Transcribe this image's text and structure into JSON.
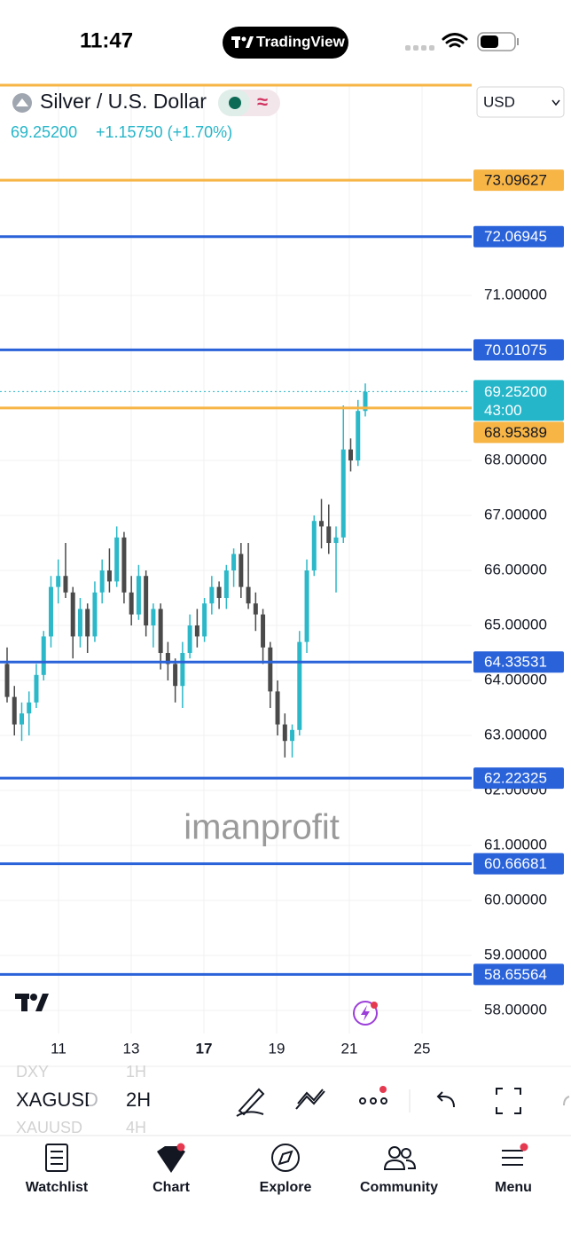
{
  "status_bar": {
    "time": "11:47",
    "app": "TradingView"
  },
  "header": {
    "symbol": "Silver / U.S. Dollar",
    "price": "69.25200",
    "change": "+1.15750 (+1.70%)",
    "currency": "USD"
  },
  "chart": {
    "ylim": [
      57.58,
      74.84
    ],
    "grid": true,
    "price_ticks": [
      {
        "value": 71,
        "label": "71.00000"
      },
      {
        "value": 68,
        "label": "68.00000"
      },
      {
        "value": 67,
        "label": "67.00000"
      },
      {
        "value": 66,
        "label": "66.00000"
      },
      {
        "value": 65,
        "label": "65.00000"
      },
      {
        "value": 64,
        "label": "64.00000"
      },
      {
        "value": 63,
        "label": "63.00000"
      },
      {
        "value": 62,
        "label": "62.00000"
      },
      {
        "value": 61,
        "label": "61.00000"
      },
      {
        "value": 60,
        "label": "60.00000"
      },
      {
        "value": 59,
        "label": "59.00000"
      },
      {
        "value": 58,
        "label": "58.00000"
      }
    ],
    "levels": [
      {
        "value": 73.09627,
        "label": "73.09627",
        "color": "#f7b546"
      },
      {
        "value": 72.06945,
        "label": "72.06945",
        "color": "#2962d9"
      },
      {
        "value": 70.01075,
        "label": "70.01075",
        "color": "#2962d9"
      },
      {
        "value": 68.95389,
        "label": "68.95389",
        "color": "#f7b546"
      },
      {
        "value": 64.33531,
        "label": "64.33531",
        "color": "#2962d9"
      },
      {
        "value": 62.22325,
        "label": "62.22325",
        "color": "#2962d9"
      },
      {
        "value": 60.66681,
        "label": "60.66681",
        "color": "#2962d9"
      },
      {
        "value": 58.65564,
        "label": "58.65564",
        "color": "#2962d9"
      }
    ],
    "last_price": {
      "value": 69.252,
      "label": "69.25200",
      "countdown": "43:00",
      "color": "#26b6c9"
    },
    "up_color": "#2bb8c8",
    "down_color": "#4a4a4a",
    "candles": [
      [
        64.3,
        64.6,
        63.6,
        63.7
      ],
      [
        63.7,
        63.9,
        63.0,
        63.2
      ],
      [
        63.2,
        63.6,
        62.9,
        63.4
      ],
      [
        63.4,
        63.8,
        63.0,
        63.6
      ],
      [
        63.6,
        64.3,
        63.5,
        64.1
      ],
      [
        64.1,
        64.9,
        64.0,
        64.8
      ],
      [
        64.8,
        65.9,
        64.6,
        65.7
      ],
      [
        65.7,
        66.2,
        65.4,
        65.9
      ],
      [
        65.9,
        66.5,
        65.5,
        65.6
      ],
      [
        65.6,
        65.7,
        64.4,
        64.8
      ],
      [
        64.8,
        65.5,
        64.6,
        65.3
      ],
      [
        65.3,
        65.4,
        64.5,
        64.8
      ],
      [
        64.8,
        65.8,
        64.7,
        65.6
      ],
      [
        65.6,
        66.2,
        65.4,
        66.0
      ],
      [
        66.0,
        66.4,
        65.6,
        65.8
      ],
      [
        65.8,
        66.8,
        65.7,
        66.6
      ],
      [
        66.6,
        66.7,
        65.4,
        65.6
      ],
      [
        65.6,
        65.9,
        65.0,
        65.2
      ],
      [
        65.2,
        66.1,
        65.1,
        65.9
      ],
      [
        65.9,
        66.0,
        64.8,
        65.0
      ],
      [
        65.0,
        65.4,
        64.6,
        65.3
      ],
      [
        65.3,
        65.4,
        64.2,
        64.5
      ],
      [
        64.5,
        64.7,
        64.0,
        64.3
      ],
      [
        64.3,
        64.4,
        63.6,
        63.9
      ],
      [
        63.9,
        64.7,
        63.5,
        64.5
      ],
      [
        64.5,
        65.2,
        64.4,
        65.0
      ],
      [
        65.0,
        65.3,
        64.6,
        64.8
      ],
      [
        64.8,
        65.5,
        64.7,
        65.4
      ],
      [
        65.4,
        65.9,
        65.2,
        65.7
      ],
      [
        65.7,
        65.8,
        65.3,
        65.5
      ],
      [
        65.5,
        66.1,
        65.3,
        66.0
      ],
      [
        66.0,
        66.4,
        65.7,
        66.3
      ],
      [
        66.3,
        66.5,
        65.5,
        65.7
      ],
      [
        65.7,
        66.5,
        65.3,
        65.4
      ],
      [
        65.4,
        65.6,
        64.9,
        65.2
      ],
      [
        65.2,
        65.3,
        64.3,
        64.6
      ],
      [
        64.6,
        64.7,
        63.5,
        63.8
      ],
      [
        63.8,
        64.0,
        63.0,
        63.2
      ],
      [
        63.2,
        63.4,
        62.6,
        62.9
      ],
      [
        62.9,
        63.2,
        62.6,
        63.1
      ],
      [
        63.1,
        64.9,
        63.0,
        64.7
      ],
      [
        64.7,
        66.2,
        64.5,
        66.0
      ],
      [
        66.0,
        67.0,
        65.9,
        66.9
      ],
      [
        66.9,
        67.3,
        66.4,
        66.8
      ],
      [
        66.8,
        67.2,
        66.3,
        66.5
      ],
      [
        66.5,
        66.8,
        65.6,
        66.6
      ],
      [
        66.6,
        69.0,
        66.5,
        68.2
      ],
      [
        68.2,
        68.4,
        67.8,
        68.0
      ],
      [
        68.0,
        69.1,
        67.9,
        68.9
      ],
      [
        68.9,
        69.4,
        68.8,
        69.25
      ]
    ],
    "time_labels": [
      "11",
      "13",
      "17",
      "19",
      "21",
      "25"
    ],
    "watermark": "imanprofit"
  },
  "toolbar": {
    "symbols": [
      "DXY",
      "XAGUSD",
      "XAUUSD"
    ],
    "intervals": [
      "1H",
      "2H",
      "4H"
    ]
  },
  "tabs": [
    "Watchlist",
    "Chart",
    "Explore",
    "Community",
    "Menu"
  ]
}
